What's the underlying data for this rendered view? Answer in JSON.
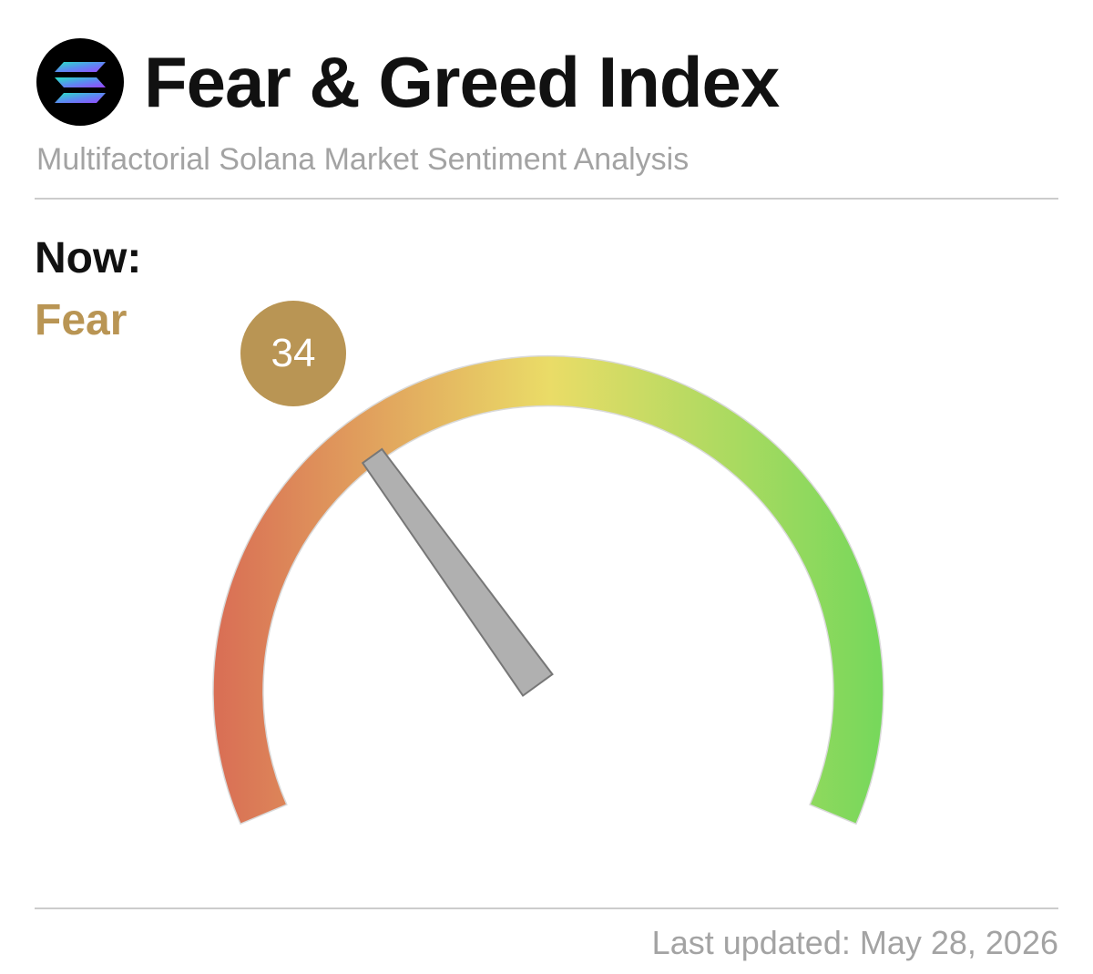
{
  "header": {
    "title": "Fear & Greed Index",
    "subtitle": "Multifactorial Solana Market Sentiment Analysis",
    "logo_icon": "solana-logo-icon"
  },
  "status": {
    "now_label": "Now:",
    "sentiment": "Fear",
    "value": "34",
    "accent_color": "#b99554"
  },
  "gauge": {
    "value": 34,
    "min": 0,
    "max": 100,
    "colors": {
      "low": "#d96f55",
      "mid": "#eadc67",
      "high": "#76d85b"
    },
    "needle_color": "#b0b0b0"
  },
  "footer": {
    "last_updated": "Last updated: May 28, 2026"
  }
}
